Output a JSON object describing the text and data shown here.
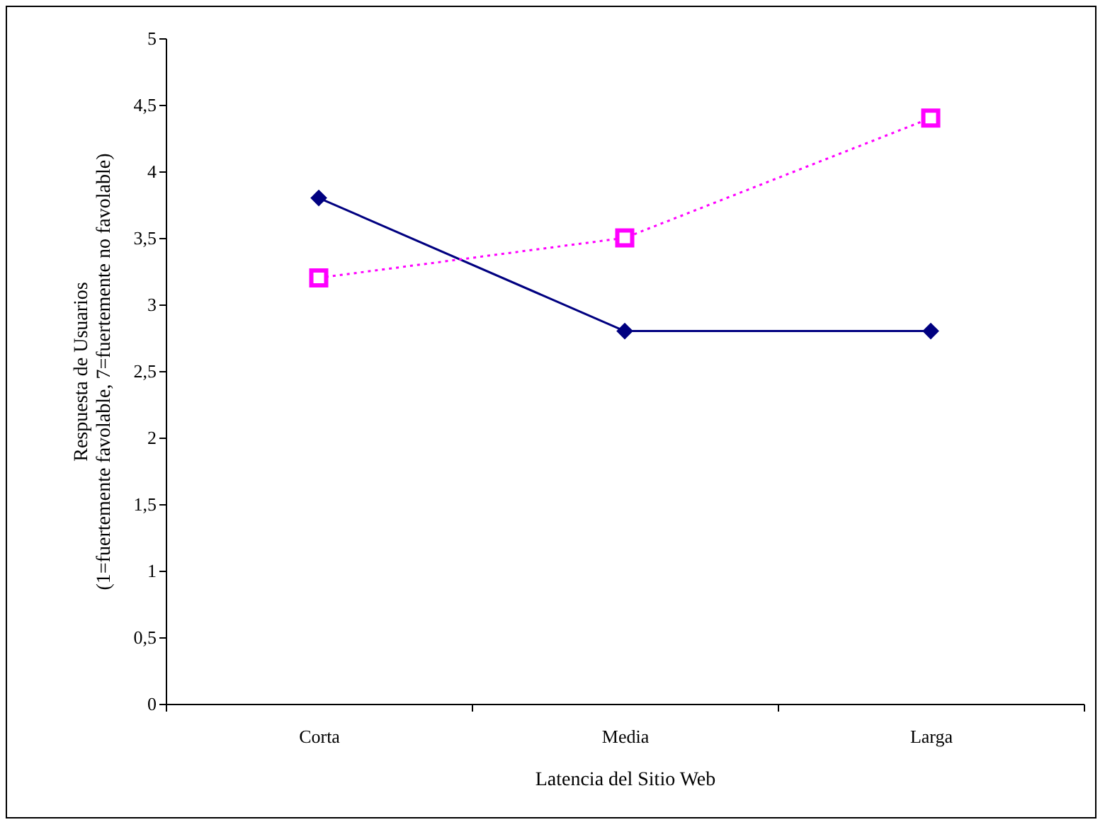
{
  "chart_data": {
    "type": "line",
    "xlabel": "Latencia del Sitio Web",
    "ylabel": "Respuesta de Usuarios\n(1=fuertemente favolable, 7=fuertemente no favolable)",
    "categories": [
      "Corta",
      "Media",
      "Larga"
    ],
    "series": [
      {
        "color": "#000080",
        "values": [
          3.8,
          2.8,
          2.8
        ],
        "marker": "diamond",
        "line_style": "solid"
      },
      {
        "color": "#ff00ff",
        "values": [
          3.2,
          3.5,
          4.4
        ],
        "marker": "square",
        "line_style": "dotted"
      }
    ],
    "ylim": [
      0,
      5
    ],
    "yticks": [
      0,
      {
        "value": 0.5,
        "label": "0,5"
      },
      1,
      {
        "value": 1.5,
        "label": "1,5"
      },
      2,
      {
        "value": 2.5,
        "label": "2,5"
      },
      3,
      {
        "value": 3.5,
        "label": "3,5"
      },
      4,
      {
        "value": 4.5,
        "label": "4,5"
      },
      5
    ],
    "grid": false
  }
}
